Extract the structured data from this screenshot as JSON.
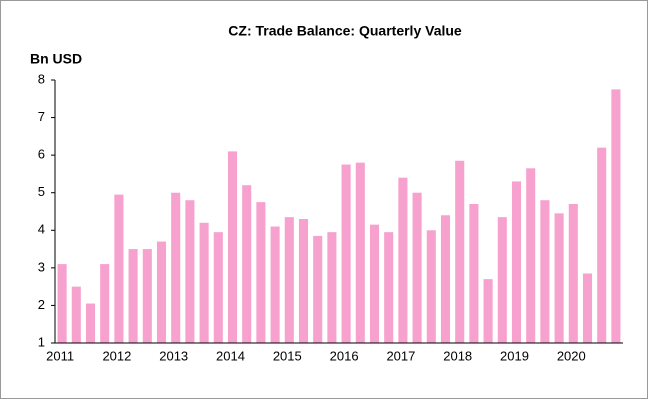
{
  "chart_data": {
    "type": "bar",
    "title": "CZ: Trade Balance: Quarterly Value",
    "y_label": "Bn USD",
    "categories": [
      "2011",
      null,
      null,
      null,
      "2012",
      null,
      null,
      null,
      "2013",
      null,
      null,
      null,
      "2014",
      null,
      null,
      null,
      "2015",
      null,
      null,
      null,
      "2016",
      null,
      null,
      null,
      "2017",
      null,
      null,
      null,
      "2018",
      null,
      null,
      null,
      "2019",
      null,
      null,
      null,
      "2020",
      null,
      null,
      null
    ],
    "values": [
      3.1,
      2.5,
      2.05,
      3.1,
      4.95,
      3.5,
      3.5,
      3.7,
      5.0,
      4.8,
      4.2,
      3.95,
      6.1,
      5.2,
      4.75,
      4.1,
      4.35,
      4.3,
      3.85,
      3.95,
      5.75,
      5.8,
      4.15,
      3.95,
      5.4,
      5.0,
      4.0,
      4.4,
      5.85,
      4.7,
      2.7,
      4.35,
      5.3,
      5.65,
      4.8,
      4.45,
      4.7,
      2.85,
      6.2,
      7.75
    ],
    "color": "#f7a1cf",
    "ylim": [
      1,
      8
    ],
    "yticks": [
      1,
      2,
      3,
      4,
      5,
      6,
      7,
      8
    ],
    "grid": false
  }
}
